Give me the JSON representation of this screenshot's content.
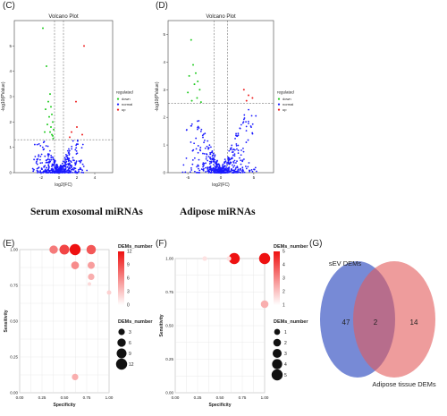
{
  "panel_labels": [
    "(C)",
    "(D)",
    "(E)",
    "(F)",
    "(G)"
  ],
  "captions": [
    "Serum exosomal miRNAs",
    "Adipose miRNAs"
  ],
  "colors": {
    "down": "#22cc22",
    "normal": "#1a1aff",
    "up": "#ee2222",
    "venn_left": "#4a63c8",
    "venn_right": "#e35a5a",
    "grad_high": "#ee1111",
    "grad_low": "#ffffff"
  },
  "chart_data": [
    {
      "type": "scatter",
      "panel": "(C)",
      "title": "Volcano Plot",
      "xlabel": "log2(FC)",
      "ylabel": "-log10(PValue)",
      "xlim": [
        -5,
        6
      ],
      "ylim": [
        0,
        6
      ],
      "xticks": [
        "-2",
        "0",
        "2",
        "4"
      ],
      "yticks": [
        "0",
        "1",
        "2",
        "3",
        "4",
        "5"
      ],
      "vlines": [
        -0.5,
        0.5
      ],
      "hline": 1.3,
      "legend_title": "regulated",
      "legend": [
        "down",
        "normal",
        "up"
      ],
      "legend_position": "right",
      "series": [
        {
          "name": "down",
          "points": [
            [
              -1.8,
              5.7
            ],
            [
              -1.4,
              4.2
            ],
            [
              -1.0,
              3.1
            ],
            [
              -1.2,
              2.8
            ],
            [
              -0.9,
              2.6
            ],
            [
              -1.5,
              2.5
            ],
            [
              -0.8,
              2.3
            ],
            [
              -1.1,
              2.2
            ],
            [
              -0.7,
              2.0
            ],
            [
              -1.3,
              1.9
            ],
            [
              -0.9,
              1.8
            ],
            [
              -0.6,
              1.7
            ],
            [
              -1.0,
              1.6
            ],
            [
              -0.8,
              1.5
            ],
            [
              -0.7,
              1.45
            ],
            [
              -1.6,
              1.6
            ],
            [
              -0.65,
              1.35
            ]
          ]
        },
        {
          "name": "up",
          "points": [
            [
              2.8,
              5.0
            ],
            [
              1.9,
              2.8
            ],
            [
              2.0,
              1.8
            ],
            [
              1.4,
              1.6
            ],
            [
              2.6,
              1.5
            ],
            [
              1.2,
              1.4
            ]
          ]
        }
      ],
      "normal_count": 500
    },
    {
      "type": "scatter",
      "panel": "(D)",
      "title": "Volcano Plot",
      "xlabel": "log2(FC)",
      "ylabel": "-log10(PValue)",
      "xlim": [
        -8,
        8
      ],
      "ylim": [
        0,
        5.5
      ],
      "xticks": [
        "-5",
        "0",
        "5"
      ],
      "yticks": [
        "0",
        "1",
        "2",
        "3",
        "4",
        "5"
      ],
      "vlines": [
        -1,
        1
      ],
      "hline": 2.5,
      "legend_title": "regulated",
      "legend": [
        "down",
        "normal",
        "up"
      ],
      "legend_position": "right",
      "series": [
        {
          "name": "down",
          "points": [
            [
              -4.5,
              4.8
            ],
            [
              -4.2,
              3.9
            ],
            [
              -3.8,
              3.6
            ],
            [
              -4.8,
              3.5
            ],
            [
              -3.5,
              3.3
            ],
            [
              -4.0,
              3.2
            ],
            [
              -3.2,
              3.0
            ],
            [
              -5.0,
              2.9
            ],
            [
              -3.6,
              2.7
            ],
            [
              -4.4,
              2.6
            ],
            [
              -3.0,
              2.55
            ]
          ]
        },
        {
          "name": "up",
          "points": [
            [
              3.5,
              3.0
            ],
            [
              4.2,
              2.8
            ],
            [
              4.8,
              2.7
            ],
            [
              3.9,
              2.6
            ]
          ]
        }
      ],
      "normal_count": 520
    },
    {
      "type": "scatter",
      "panel": "(E)",
      "xlabel": "Specificity",
      "ylabel": "Sensitivity",
      "xlim": [
        0,
        1
      ],
      "ylim": [
        0,
        1
      ],
      "xticks": [
        "0.00",
        "0.25",
        "0.50",
        "0.75",
        "1.00"
      ],
      "yticks": [
        "0.00",
        "0.25",
        "0.50",
        "0.75",
        "1.00"
      ],
      "color_legend_title": "DEMs_number",
      "color_legend_ticks": [
        "0",
        "3",
        "6",
        "9",
        "12"
      ],
      "color_max": 12,
      "size_legend_title": "DEMs_number",
      "size_legend": [
        "3",
        "6",
        "9",
        "12"
      ],
      "points": [
        {
          "x": 0.38,
          "y": 1.0,
          "n": 6
        },
        {
          "x": 0.5,
          "y": 1.0,
          "n": 9
        },
        {
          "x": 0.62,
          "y": 1.0,
          "n": 12
        },
        {
          "x": 0.8,
          "y": 1.0,
          "n": 8
        },
        {
          "x": 0.62,
          "y": 0.89,
          "n": 5
        },
        {
          "x": 0.8,
          "y": 0.89,
          "n": 4
        },
        {
          "x": 0.8,
          "y": 0.81,
          "n": 3
        },
        {
          "x": 0.78,
          "y": 0.76,
          "n": 0.5
        },
        {
          "x": 1.0,
          "y": 0.7,
          "n": 1
        },
        {
          "x": 0.62,
          "y": 0.11,
          "n": 3
        }
      ]
    },
    {
      "type": "scatter",
      "panel": "(F)",
      "xlabel": "Specificity",
      "ylabel": "Sensitivity",
      "xlim": [
        0,
        1
      ],
      "ylim": [
        0,
        1
      ],
      "xticks": [
        "0.00",
        "0.25",
        "0.50",
        "0.75",
        "1.00"
      ],
      "yticks": [
        "0.00",
        "0.25",
        "0.50",
        "0.75",
        "1.00"
      ],
      "color_legend_title": "DEMs_number",
      "color_legend_ticks": [
        "1",
        "2",
        "3",
        "4",
        "5"
      ],
      "color_max": 5,
      "color_min": 1,
      "size_legend_title": "DEMs_number",
      "size_legend": [
        "1",
        "2",
        "3",
        "4",
        "5"
      ],
      "points": [
        {
          "x": 0.33,
          "y": 1.0,
          "n": 0.5
        },
        {
          "x": 0.66,
          "y": 1.0,
          "n": 5
        },
        {
          "x": 1.0,
          "y": 1.0,
          "n": 5
        },
        {
          "x": 0.6,
          "y": 1.0,
          "n": 0.5
        },
        {
          "x": 1.0,
          "y": 0.66,
          "n": 2
        }
      ]
    },
    {
      "type": "venn",
      "panel": "(G)",
      "sets": [
        "sEV DEMs",
        "Adipose tissue DEMs"
      ],
      "left_only": "47",
      "intersection": "2",
      "right_only": "14"
    }
  ]
}
